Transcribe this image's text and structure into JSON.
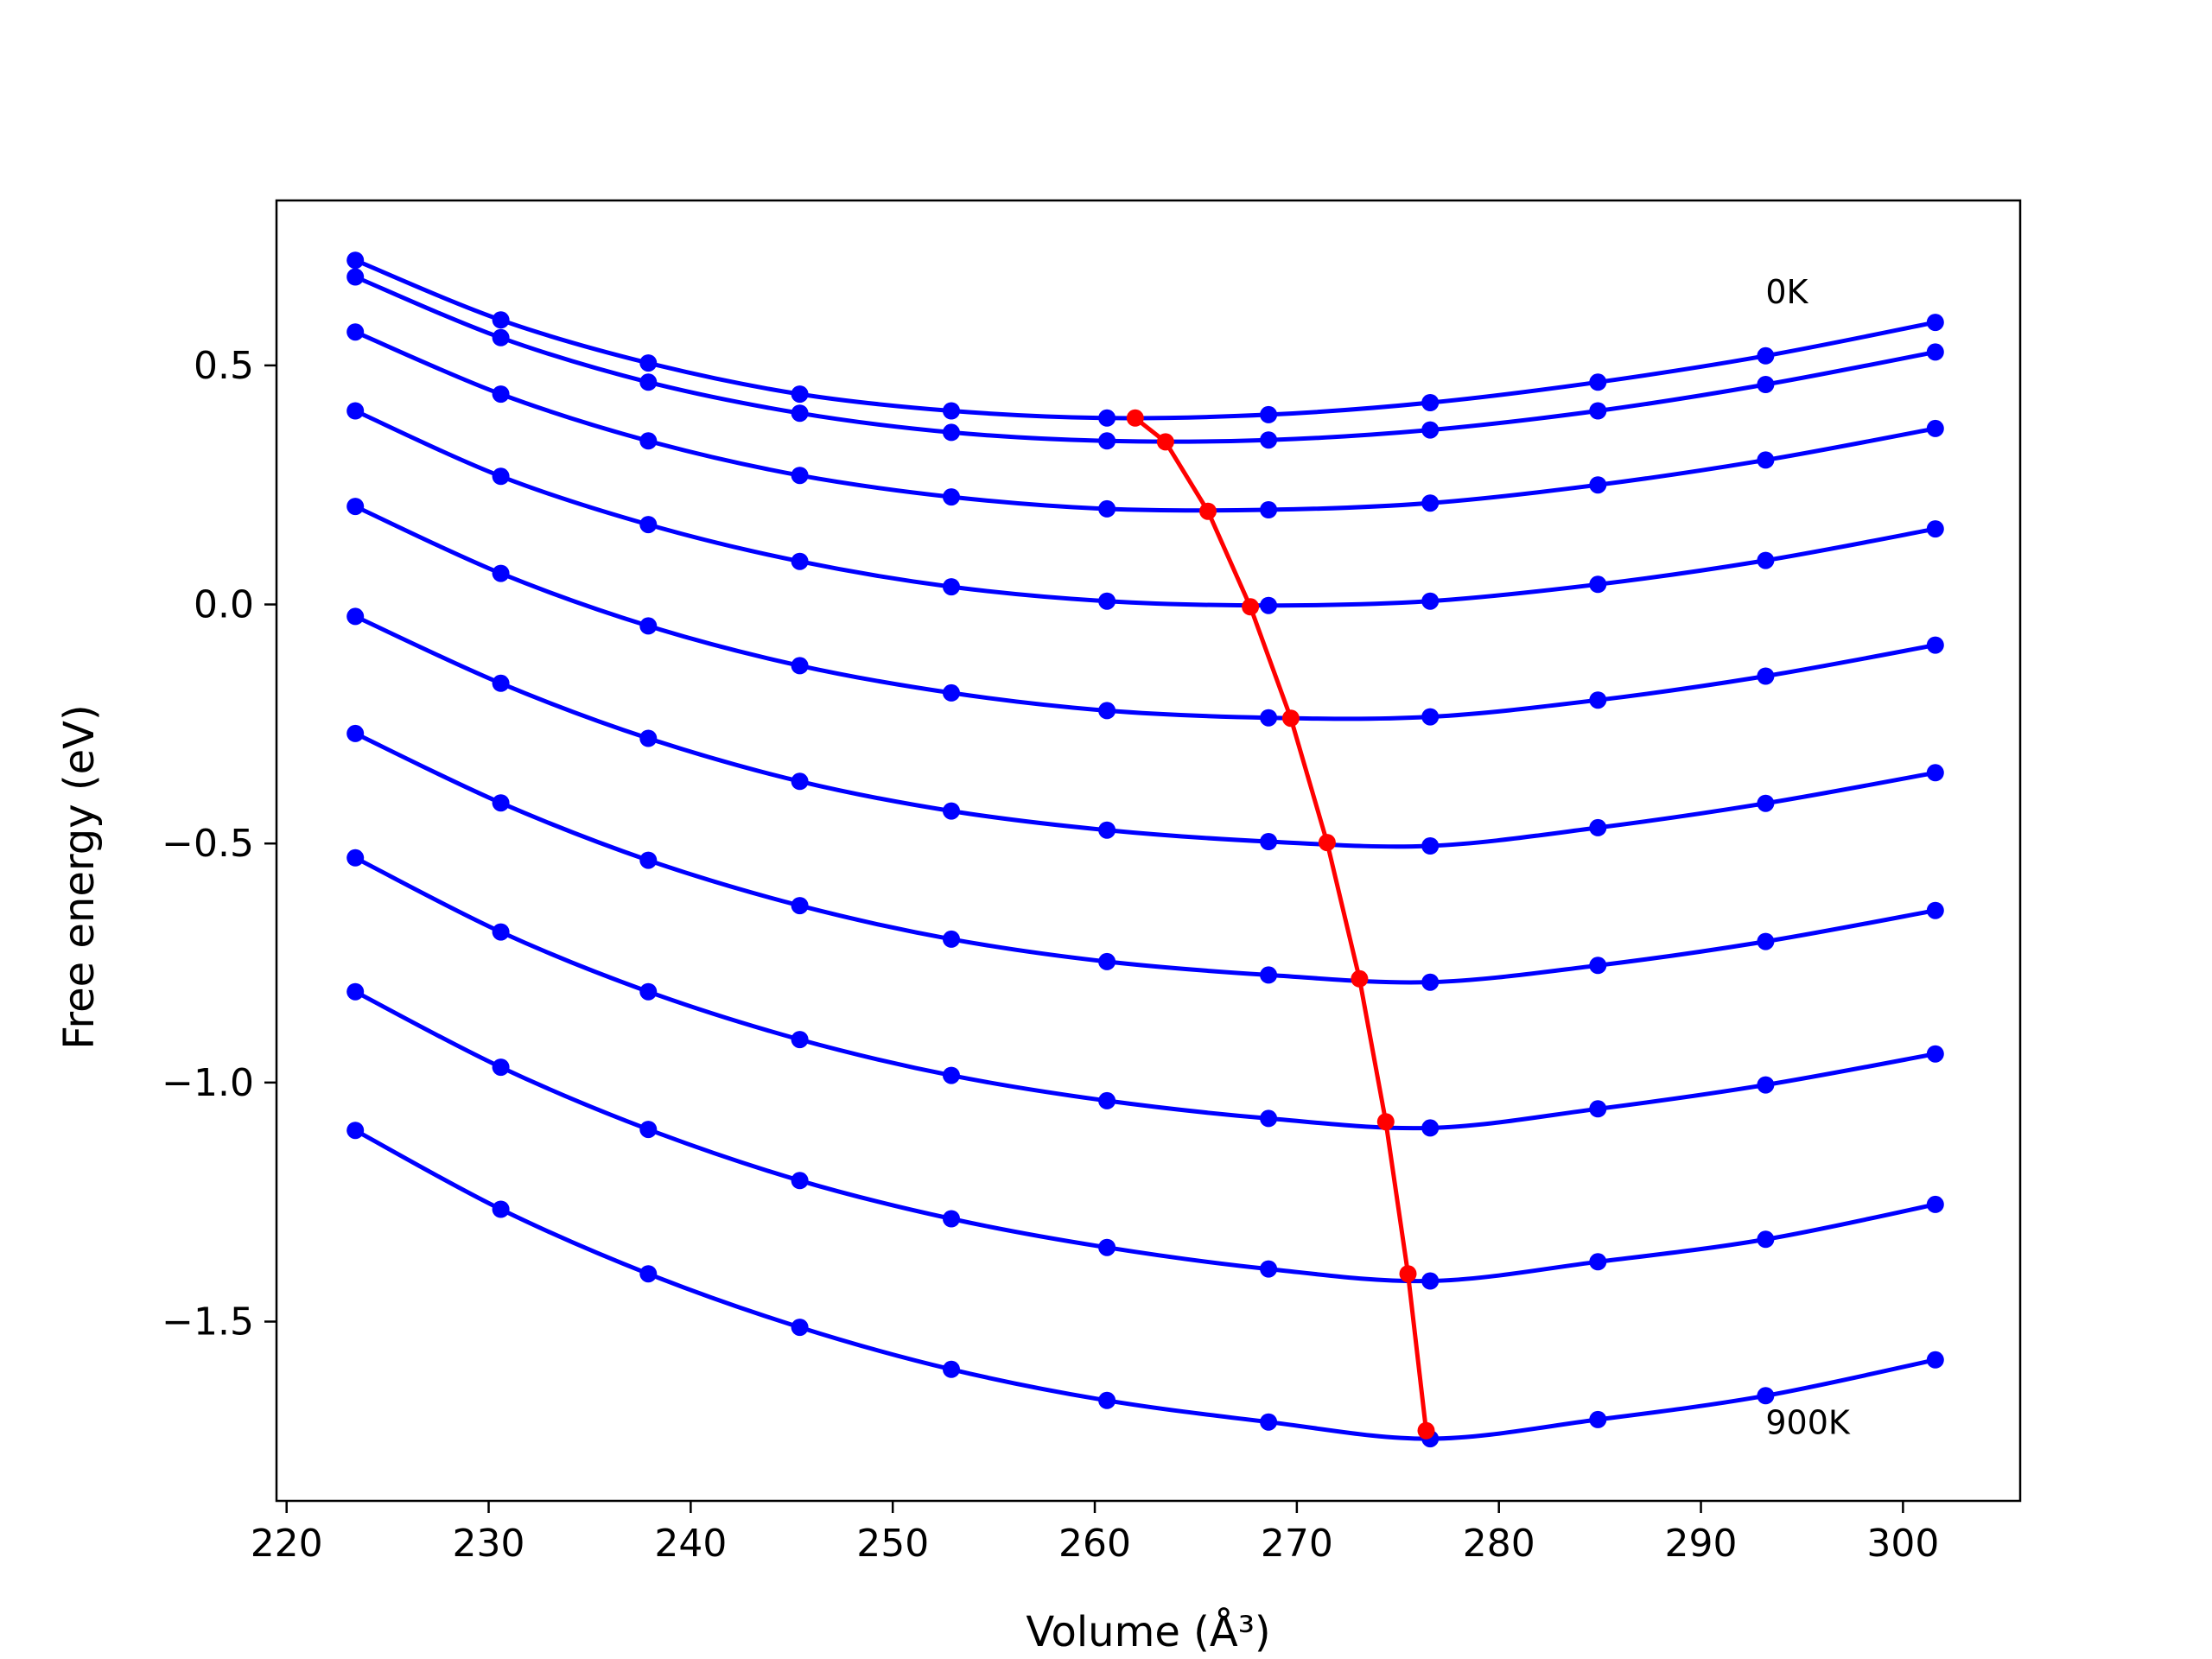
{
  "chart_data": {
    "type": "line",
    "title": "",
    "xlabel": "Volume (Å³)",
    "ylabel": "Free energy (eV)",
    "xlim": [
      219.5,
      305.8
    ],
    "ylim": [
      -1.875,
      0.845
    ],
    "xticks": [
      220,
      230,
      240,
      250,
      260,
      270,
      280,
      290,
      300
    ],
    "yticks": [
      0.5,
      0.0,
      -0.5,
      -1.0,
      -1.5
    ],
    "x_tick_labels": [
      "220",
      "230",
      "240",
      "250",
      "260",
      "270",
      "280",
      "290",
      "300"
    ],
    "y_tick_labels": [
      "0.5",
      "0.0",
      "−0.5",
      "−1.0",
      "−1.5"
    ],
    "grid": false,
    "legend": "none",
    "colors": {
      "isotherms": "#0000ff",
      "minimum_curve": "#ff0000"
    },
    "x": [
      223.4,
      230.6,
      237.9,
      245.4,
      252.9,
      260.6,
      268.6,
      276.6,
      284.9,
      293.2,
      301.6
    ],
    "series": [
      {
        "values": [
          0.72,
          0.595,
          0.505,
          0.44,
          0.405,
          0.39,
          0.397,
          0.422,
          0.465,
          0.52,
          0.59
        ]
      },
      {
        "values": [
          0.685,
          0.558,
          0.465,
          0.4,
          0.36,
          0.342,
          0.344,
          0.365,
          0.405,
          0.46,
          0.528
        ]
      },
      {
        "values": [
          0.57,
          0.44,
          0.342,
          0.27,
          0.225,
          0.2,
          0.198,
          0.212,
          0.25,
          0.302,
          0.368
        ]
      },
      {
        "values": [
          0.405,
          0.268,
          0.167,
          0.09,
          0.037,
          0.007,
          -0.002,
          0.007,
          0.042,
          0.092,
          0.158
        ]
      },
      {
        "values": [
          0.205,
          0.065,
          -0.045,
          -0.128,
          -0.185,
          -0.222,
          -0.237,
          -0.235,
          -0.2,
          -0.15,
          -0.085
        ]
      },
      {
        "values": [
          -0.025,
          -0.165,
          -0.28,
          -0.37,
          -0.432,
          -0.472,
          -0.496,
          -0.505,
          -0.467,
          -0.416,
          -0.352
        ]
      },
      {
        "values": [
          -0.27,
          -0.415,
          -0.535,
          -0.63,
          -0.7,
          -0.747,
          -0.775,
          -0.79,
          -0.755,
          -0.705,
          -0.64
        ]
      },
      {
        "values": [
          -0.53,
          -0.685,
          -0.81,
          -0.91,
          -0.985,
          -1.038,
          -1.075,
          -1.095,
          -1.055,
          -1.005,
          -0.94
        ]
      },
      {
        "values": [
          -0.81,
          -0.968,
          -1.098,
          -1.205,
          -1.285,
          -1.345,
          -1.39,
          -1.415,
          -1.375,
          -1.328,
          -1.255
        ]
      },
      {
        "values": [
          -1.1,
          -1.265,
          -1.4,
          -1.512,
          -1.6,
          -1.665,
          -1.71,
          -1.745,
          -1.705,
          -1.655,
          -1.58
        ]
      }
    ],
    "minimum_curve": {
      "x": [
        262.0,
        263.5,
        265.6,
        267.7,
        269.7,
        271.5,
        273.1,
        274.4,
        275.5,
        276.4
      ],
      "y": [
        0.39,
        0.34,
        0.195,
        -0.005,
        -0.238,
        -0.498,
        -0.783,
        -1.082,
        -1.4,
        -1.728
      ]
    },
    "annotations": [
      {
        "text": "0K",
        "x": 293.2,
        "y": 0.655
      },
      {
        "text": "900K",
        "x": 293.2,
        "y": -1.71
      }
    ]
  }
}
